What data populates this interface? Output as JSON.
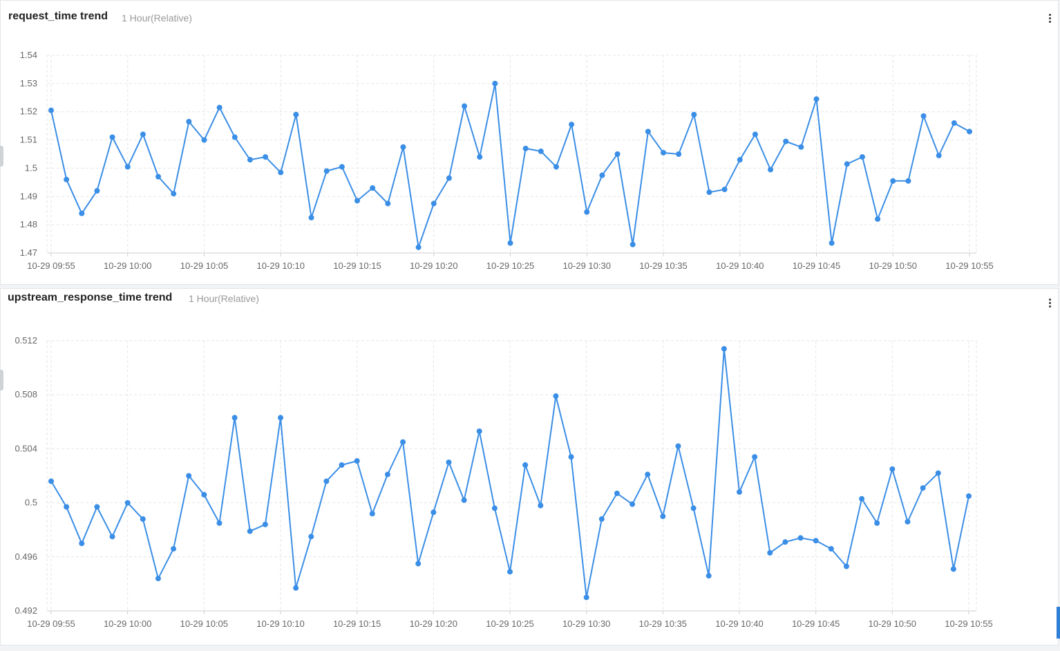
{
  "panels": [
    {
      "title": "request_time trend",
      "range": "1 Hour(Relative)"
    },
    {
      "title": "upstream_response_time trend",
      "range": "1 Hour(Relative)"
    }
  ],
  "colors": {
    "series": "#3a8ee6",
    "grid": "#e6e6e6",
    "axis": "#cccccc",
    "tick_text": "#666666"
  },
  "icons": {
    "menu": "more-vertical-icon"
  },
  "chart_data": [
    {
      "type": "line",
      "title": "request_time trend",
      "x_tick_labels": [
        "10-29 09:55",
        "10-29 10:00",
        "10-29 10:05",
        "10-29 10:10",
        "10-29 10:15",
        "10-29 10:20",
        "10-29 10:25",
        "10-29 10:30",
        "10-29 10:35",
        "10-29 10:40",
        "10-29 10:45",
        "10-29 10:50",
        "10-29 10:55"
      ],
      "y_tick_labels": [
        "1.47",
        "1.48",
        "1.49",
        "1.5",
        "1.51",
        "1.52",
        "1.53",
        "1.54"
      ],
      "ylim": [
        1.47,
        1.54
      ],
      "grid": true,
      "x_start": "10-29 09:55",
      "x_interval_minutes": 1,
      "values": [
        1.5205,
        1.496,
        1.484,
        1.492,
        1.511,
        1.5005,
        1.512,
        1.497,
        1.491,
        1.5165,
        1.51,
        1.5215,
        1.511,
        1.503,
        1.504,
        1.4985,
        1.519,
        1.4825,
        1.499,
        1.5005,
        1.4885,
        1.493,
        1.4875,
        1.5075,
        1.472,
        1.4875,
        1.4965,
        1.522,
        1.504,
        1.53,
        1.4735,
        1.507,
        1.506,
        1.5005,
        1.5155,
        1.4845,
        1.4975,
        1.505,
        1.473,
        1.513,
        1.5055,
        1.505,
        1.519,
        1.4915,
        1.4925,
        1.503,
        1.512,
        1.4995,
        1.5095,
        1.5075,
        1.5245,
        1.4735,
        1.5015,
        1.504,
        1.482,
        1.4955,
        1.4955,
        1.5185,
        1.5045,
        1.516,
        1.513
      ]
    },
    {
      "type": "line",
      "title": "upstream_response_time trend",
      "x_tick_labels": [
        "10-29 09:55",
        "10-29 10:00",
        "10-29 10:05",
        "10-29 10:10",
        "10-29 10:15",
        "10-29 10:20",
        "10-29 10:25",
        "10-29 10:30",
        "10-29 10:35",
        "10-29 10:40",
        "10-29 10:45",
        "10-29 10:50",
        "10-29 10:55"
      ],
      "y_tick_labels": [
        "0.492",
        "0.496",
        "0.5",
        "0.504",
        "0.508",
        "0.512"
      ],
      "ylim": [
        0.492,
        0.512
      ],
      "grid": true,
      "x_start": "10-29 09:55",
      "x_interval_minutes": 1,
      "values": [
        0.5016,
        0.4997,
        0.497,
        0.4997,
        0.4975,
        0.5,
        0.4988,
        0.4944,
        0.4966,
        0.502,
        0.5006,
        0.4985,
        0.5063,
        0.4979,
        0.4984,
        0.5063,
        0.4937,
        0.4975,
        0.5016,
        0.5028,
        0.5031,
        0.4992,
        0.5021,
        0.5045,
        0.4955,
        0.4993,
        0.503,
        0.5002,
        0.5053,
        0.4996,
        0.4949,
        0.5028,
        0.4998,
        0.5079,
        0.5034,
        0.493,
        0.4988,
        0.5007,
        0.4999,
        0.5021,
        0.499,
        0.5042,
        0.4996,
        0.4946,
        0.5114,
        0.5008,
        0.5034,
        0.4963,
        0.4971,
        0.4974,
        0.4972,
        0.4966,
        0.4953,
        0.5003,
        0.4985,
        0.5025,
        0.4986,
        0.5011,
        0.5022,
        0.4951,
        0.5005
      ]
    }
  ]
}
